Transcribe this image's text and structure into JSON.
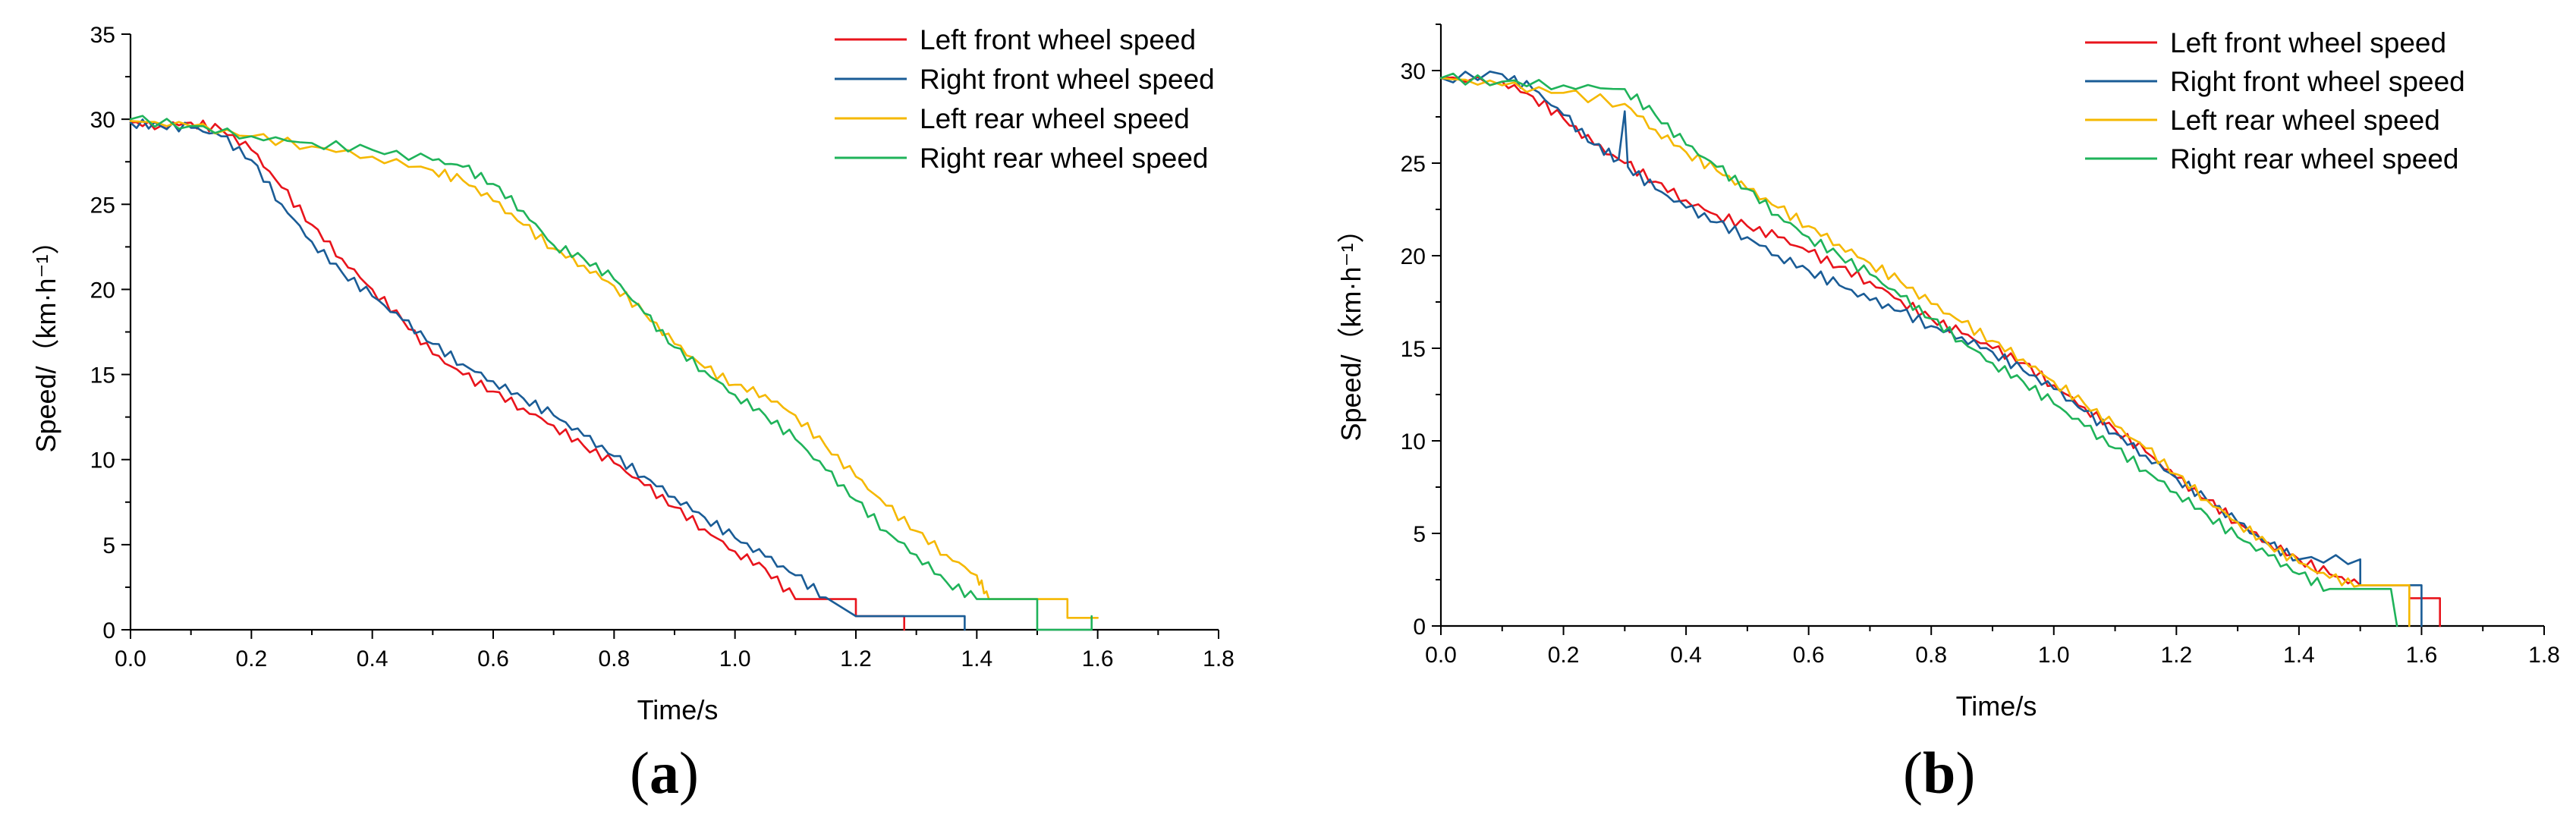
{
  "chart_data": [
    {
      "panel": "a",
      "caption": "(a)",
      "caption_letter": "a",
      "type": "line",
      "xlabel": "Time/s",
      "ylabel": "Speed/（km·h⁻¹）",
      "xlim": [
        0.0,
        1.8
      ],
      "ylim": [
        0,
        35
      ],
      "xticks": [
        "0.0",
        "0.2",
        "0.4",
        "0.6",
        "0.8",
        "1.0",
        "1.2",
        "1.4",
        "1.6",
        "1.8"
      ],
      "yticks": [
        "0",
        "5",
        "10",
        "15",
        "20",
        "25",
        "30",
        "35"
      ],
      "grid": false,
      "legend_position": "top-right",
      "series": [
        {
          "name": "Left front wheel speed",
          "color": "#e8141c",
          "points": [
            [
              0.0,
              29.8
            ],
            [
              0.05,
              29.6
            ],
            [
              0.1,
              29.8
            ],
            [
              0.15,
              29.4
            ],
            [
              0.2,
              28.2
            ],
            [
              0.25,
              26.0
            ],
            [
              0.3,
              23.8
            ],
            [
              0.35,
              21.8
            ],
            [
              0.4,
              20.0
            ],
            [
              0.45,
              18.2
            ],
            [
              0.5,
              16.2
            ],
            [
              0.55,
              15.0
            ],
            [
              0.6,
              14.0
            ],
            [
              0.65,
              13.0
            ],
            [
              0.7,
              12.0
            ],
            [
              0.75,
              10.8
            ],
            [
              0.8,
              9.8
            ],
            [
              0.85,
              8.5
            ],
            [
              0.9,
              7.2
            ],
            [
              0.95,
              5.9
            ],
            [
              1.0,
              4.6
            ],
            [
              1.05,
              3.6
            ],
            [
              1.1,
              1.8
            ],
            [
              1.2,
              1.8
            ],
            [
              1.2,
              0.8
            ],
            [
              1.28,
              0.8
            ],
            [
              1.28,
              0.0
            ]
          ]
        },
        {
          "name": "Right front wheel speed",
          "color": "#1a5c96",
          "points": [
            [
              0.0,
              29.8
            ],
            [
              0.05,
              29.6
            ],
            [
              0.1,
              29.5
            ],
            [
              0.15,
              29.0
            ],
            [
              0.2,
              27.6
            ],
            [
              0.25,
              25.0
            ],
            [
              0.3,
              22.8
            ],
            [
              0.35,
              21.0
            ],
            [
              0.4,
              19.6
            ],
            [
              0.45,
              18.2
            ],
            [
              0.5,
              16.8
            ],
            [
              0.55,
              15.6
            ],
            [
              0.6,
              14.6
            ],
            [
              0.65,
              13.6
            ],
            [
              0.7,
              12.6
            ],
            [
              0.75,
              11.4
            ],
            [
              0.8,
              10.2
            ],
            [
              0.85,
              9.0
            ],
            [
              0.9,
              7.8
            ],
            [
              0.95,
              6.6
            ],
            [
              1.0,
              5.4
            ],
            [
              1.05,
              4.3
            ],
            [
              1.1,
              3.2
            ],
            [
              1.15,
              1.9
            ],
            [
              1.2,
              0.8
            ],
            [
              1.38,
              0.8
            ],
            [
              1.38,
              0.0
            ]
          ]
        },
        {
          "name": "Left rear wheel speed",
          "color": "#f5b800",
          "points": [
            [
              0.0,
              29.9
            ],
            [
              0.1,
              29.6
            ],
            [
              0.2,
              29.0
            ],
            [
              0.3,
              28.4
            ],
            [
              0.4,
              27.8
            ],
            [
              0.5,
              27.0
            ],
            [
              0.55,
              26.4
            ],
            [
              0.6,
              25.2
            ],
            [
              0.65,
              23.8
            ],
            [
              0.7,
              22.4
            ],
            [
              0.75,
              21.4
            ],
            [
              0.8,
              20.2
            ],
            [
              0.85,
              18.6
            ],
            [
              0.9,
              16.8
            ],
            [
              0.95,
              15.4
            ],
            [
              1.0,
              14.4
            ],
            [
              1.05,
              13.8
            ],
            [
              1.1,
              12.6
            ],
            [
              1.15,
              10.8
            ],
            [
              1.2,
              9.0
            ],
            [
              1.25,
              7.3
            ],
            [
              1.3,
              5.8
            ],
            [
              1.35,
              4.4
            ],
            [
              1.4,
              3.2
            ],
            [
              1.42,
              1.8
            ],
            [
              1.55,
              1.8
            ],
            [
              1.55,
              0.7
            ],
            [
              1.6,
              0.7
            ]
          ]
        },
        {
          "name": "Right rear wheel speed",
          "color": "#1fb35a",
          "points": [
            [
              0.0,
              30.0
            ],
            [
              0.1,
              29.6
            ],
            [
              0.2,
              29.0
            ],
            [
              0.3,
              28.6
            ],
            [
              0.4,
              28.2
            ],
            [
              0.5,
              27.6
            ],
            [
              0.55,
              27.2
            ],
            [
              0.6,
              26.2
            ],
            [
              0.65,
              24.6
            ],
            [
              0.7,
              22.6
            ],
            [
              0.75,
              21.8
            ],
            [
              0.8,
              20.6
            ],
            [
              0.85,
              18.6
            ],
            [
              0.9,
              16.6
            ],
            [
              0.95,
              15.2
            ],
            [
              1.0,
              13.8
            ],
            [
              1.05,
              12.6
            ],
            [
              1.1,
              11.2
            ],
            [
              1.15,
              9.4
            ],
            [
              1.2,
              7.6
            ],
            [
              1.25,
              5.8
            ],
            [
              1.3,
              4.4
            ],
            [
              1.35,
              2.8
            ],
            [
              1.4,
              1.8
            ],
            [
              1.5,
              1.8
            ],
            [
              1.5,
              0.0
            ],
            [
              1.59,
              0.0
            ],
            [
              1.59,
              0.8
            ]
          ]
        }
      ]
    },
    {
      "panel": "b",
      "caption": "(b)",
      "caption_letter": "b",
      "type": "line",
      "xlabel": "Time/s",
      "ylabel": "Speed/（km·h⁻¹）",
      "xlim": [
        0.0,
        1.8
      ],
      "ylim": [
        0,
        32.5
      ],
      "xticks": [
        "0.0",
        "0.2",
        "0.4",
        "0.6",
        "0.8",
        "1.0",
        "1.2",
        "1.4",
        "1.6",
        "1.8"
      ],
      "yticks": [
        "0",
        "5",
        "10",
        "15",
        "20",
        "25",
        "30"
      ],
      "grid": false,
      "legend_position": "top-right",
      "series": [
        {
          "name": "Left front wheel speed",
          "color": "#e8141c",
          "points": [
            [
              0.0,
              29.6
            ],
            [
              0.1,
              29.4
            ],
            [
              0.15,
              28.6
            ],
            [
              0.2,
              27.4
            ],
            [
              0.25,
              26.0
            ],
            [
              0.3,
              25.0
            ],
            [
              0.35,
              24.0
            ],
            [
              0.4,
              23.0
            ],
            [
              0.45,
              22.2
            ],
            [
              0.5,
              21.6
            ],
            [
              0.55,
              21.0
            ],
            [
              0.6,
              20.2
            ],
            [
              0.65,
              19.4
            ],
            [
              0.7,
              18.6
            ],
            [
              0.75,
              17.6
            ],
            [
              0.8,
              16.6
            ],
            [
              0.85,
              15.8
            ],
            [
              0.9,
              15.0
            ],
            [
              0.95,
              14.2
            ],
            [
              1.0,
              13.0
            ],
            [
              1.05,
              11.8
            ],
            [
              1.1,
              10.6
            ],
            [
              1.15,
              9.4
            ],
            [
              1.2,
              8.0
            ],
            [
              1.25,
              6.8
            ],
            [
              1.3,
              5.6
            ],
            [
              1.35,
              4.5
            ],
            [
              1.4,
              3.6
            ],
            [
              1.45,
              2.8
            ],
            [
              1.5,
              2.2
            ],
            [
              1.58,
              2.2
            ],
            [
              1.58,
              1.5
            ],
            [
              1.63,
              1.5
            ],
            [
              1.63,
              0.0
            ]
          ]
        },
        {
          "name": "Right front wheel speed",
          "color": "#1a5c96",
          "points": [
            [
              0.0,
              29.6
            ],
            [
              0.1,
              29.8
            ],
            [
              0.15,
              29.0
            ],
            [
              0.2,
              27.6
            ],
            [
              0.25,
              26.0
            ],
            [
              0.29,
              25.2
            ],
            [
              0.3,
              27.8
            ],
            [
              0.305,
              24.8
            ],
            [
              0.35,
              23.6
            ],
            [
              0.4,
              22.6
            ],
            [
              0.45,
              21.8
            ],
            [
              0.5,
              21.0
            ],
            [
              0.55,
              20.0
            ],
            [
              0.6,
              19.2
            ],
            [
              0.65,
              18.4
            ],
            [
              0.7,
              17.6
            ],
            [
              0.75,
              17.0
            ],
            [
              0.8,
              16.2
            ],
            [
              0.85,
              15.6
            ],
            [
              0.9,
              14.8
            ],
            [
              0.95,
              13.8
            ],
            [
              1.0,
              12.8
            ],
            [
              1.05,
              11.6
            ],
            [
              1.1,
              10.4
            ],
            [
              1.15,
              9.2
            ],
            [
              1.2,
              8.0
            ],
            [
              1.25,
              6.8
            ],
            [
              1.3,
              5.6
            ],
            [
              1.35,
              4.4
            ],
            [
              1.4,
              3.6
            ],
            [
              1.5,
              3.6
            ],
            [
              1.5,
              2.2
            ],
            [
              1.6,
              2.2
            ],
            [
              1.6,
              0.0
            ]
          ]
        },
        {
          "name": "Left rear wheel speed",
          "color": "#f5b800",
          "points": [
            [
              0.0,
              29.6
            ],
            [
              0.1,
              29.2
            ],
            [
              0.2,
              28.8
            ],
            [
              0.3,
              28.2
            ],
            [
              0.35,
              26.8
            ],
            [
              0.4,
              25.6
            ],
            [
              0.45,
              24.6
            ],
            [
              0.5,
              23.6
            ],
            [
              0.55,
              22.6
            ],
            [
              0.6,
              21.6
            ],
            [
              0.65,
              20.6
            ],
            [
              0.7,
              19.6
            ],
            [
              0.75,
              18.6
            ],
            [
              0.8,
              17.4
            ],
            [
              0.85,
              16.4
            ],
            [
              0.9,
              15.4
            ],
            [
              0.95,
              14.4
            ],
            [
              1.0,
              13.2
            ],
            [
              1.05,
              12.0
            ],
            [
              1.1,
              10.8
            ],
            [
              1.15,
              9.6
            ],
            [
              1.2,
              8.2
            ],
            [
              1.25,
              6.8
            ],
            [
              1.3,
              5.6
            ],
            [
              1.35,
              4.4
            ],
            [
              1.4,
              3.4
            ],
            [
              1.45,
              2.6
            ],
            [
              1.5,
              2.2
            ],
            [
              1.58,
              2.2
            ],
            [
              1.58,
              0.0
            ]
          ]
        },
        {
          "name": "Right rear wheel speed",
          "color": "#1fb35a",
          "points": [
            [
              0.0,
              29.6
            ],
            [
              0.1,
              29.4
            ],
            [
              0.2,
              29.2
            ],
            [
              0.3,
              29.0
            ],
            [
              0.35,
              27.6
            ],
            [
              0.4,
              26.0
            ],
            [
              0.45,
              24.8
            ],
            [
              0.5,
              23.6
            ],
            [
              0.55,
              22.2
            ],
            [
              0.6,
              21.0
            ],
            [
              0.65,
              20.0
            ],
            [
              0.7,
              19.0
            ],
            [
              0.75,
              17.8
            ],
            [
              0.8,
              16.6
            ],
            [
              0.85,
              15.4
            ],
            [
              0.9,
              14.2
            ],
            [
              0.95,
              13.2
            ],
            [
              1.0,
              12.0
            ],
            [
              1.05,
              10.8
            ],
            [
              1.1,
              9.6
            ],
            [
              1.15,
              8.4
            ],
            [
              1.2,
              7.2
            ],
            [
              1.25,
              6.0
            ],
            [
              1.3,
              4.8
            ],
            [
              1.35,
              3.8
            ],
            [
              1.4,
              2.8
            ],
            [
              1.45,
              2.0
            ],
            [
              1.55,
              2.0
            ],
            [
              1.56,
              0.0
            ]
          ]
        }
      ]
    }
  ]
}
